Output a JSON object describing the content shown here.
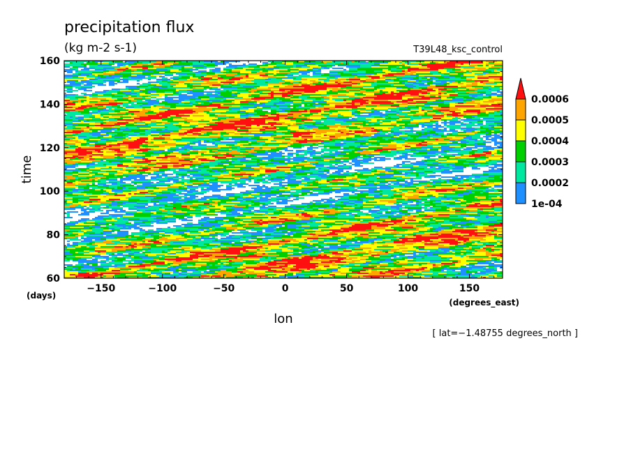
{
  "chart_data": {
    "type": "heatmap",
    "title": "precipitation flux",
    "units": "(kg m-2 s-1)",
    "experiment": "T39L48_ksc_control",
    "xlabel": "lon",
    "xunits": "(degrees_east)",
    "ylabel": "time",
    "yunits": "(days)",
    "xlim": [
      -180,
      177
    ],
    "ylim": [
      60,
      160
    ],
    "x_ticks": [
      -150,
      -100,
      -50,
      0,
      50,
      100,
      150
    ],
    "y_ticks": [
      60,
      80,
      100,
      120,
      140,
      160
    ],
    "x_tick_labels": [
      "−150",
      "−100",
      "−50",
      "0",
      "50",
      "100",
      "150"
    ],
    "y_tick_labels": [
      "60",
      "80",
      "100",
      "120",
      "140",
      "160"
    ],
    "annotation": "[ lat=−1.48755 degrees_north ]",
    "colorbar": {
      "levels": [
        0.0001,
        0.0002,
        0.0003,
        0.0004,
        0.0005,
        0.0006
      ],
      "labels": [
        "1e-04",
        "0.0002",
        "0.0003",
        "0.0004",
        "0.0005",
        "0.0006"
      ],
      "colors": [
        "#1e90ff",
        "#00e8a0",
        "#00d000",
        "#ffff00",
        "#ffa500",
        "#ff1010"
      ],
      "extend": "max"
    }
  }
}
